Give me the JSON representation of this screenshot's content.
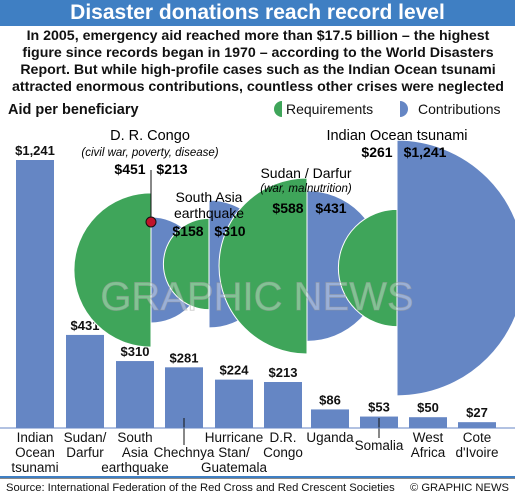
{
  "header": {
    "title": "Disaster donations reach record level",
    "intro": "In 2005, emergency aid reached more than $17.5 billion – the highest figure since records began in 1970 – according to the World Disasters Report. But while high-profile cases such as the Indian Ocean tsunami attracted enormous contributions, countless other crises were neglected",
    "subhead": "Aid per beneficiary"
  },
  "legend": {
    "requirements_label": "Requirements",
    "contributions_label": "Contributions"
  },
  "colors": {
    "requirements": "#3fa55a",
    "contributions": "#6586c4",
    "bar": "#6586c4",
    "banner": "#3f7fc3"
  },
  "watermark": "GRAPHIC NEWS",
  "footer": {
    "source": "Source: International Federation of the Red Cross and Red Crescent Societies",
    "credit": "© GRAPHIC NEWS"
  },
  "chart_data": [
    {
      "type": "bar",
      "title": "Aid per beneficiary",
      "categories": [
        "Indian Ocean tsunami",
        "Sudan/ Darfur",
        "South Asia earthquake",
        "Chechnya",
        "Hurricane Stan/ Guatemala",
        "D.R. Congo",
        "Uganda",
        "Somalia",
        "West Africa",
        "Cote d'Ivoire"
      ],
      "category_lines": [
        [
          "Indian",
          "Ocean",
          "tsunami"
        ],
        [
          "Sudan/",
          "Darfur"
        ],
        [
          "South",
          "Asia",
          "earthquake"
        ],
        [
          "Chechnya"
        ],
        [
          "Hurricane",
          "Stan/",
          "Guatemala"
        ],
        [
          "D.R.",
          "Congo"
        ],
        [
          "Uganda"
        ],
        [
          "Somalia"
        ],
        [
          "West",
          "Africa"
        ],
        [
          "Cote",
          "d'Ivoire"
        ]
      ],
      "values": [
        1241,
        431,
        310,
        281,
        224,
        213,
        86,
        53,
        50,
        27
      ],
      "value_labels": [
        "$1,241",
        "$431",
        "$310",
        "$281",
        "$224",
        "$213",
        "$86",
        "$53",
        "$50",
        "$27"
      ],
      "ylim": [
        0,
        1241
      ]
    },
    {
      "type": "pie",
      "description": "Half-circle pairs: requirements (left half) vs contributions (right half), area proportional to value",
      "series_names": [
        "Requirements",
        "Contributions"
      ],
      "items": [
        {
          "name": "D. R. Congo",
          "note": "(civil war, poverty, disease)",
          "requirements": 451,
          "contributions": 213,
          "req_label": "$451",
          "con_label": "$213"
        },
        {
          "name": "South Asia earthquake",
          "name_lines": [
            "South Asia",
            "earthquake"
          ],
          "requirements": 158,
          "contributions": 310,
          "req_label": "$158",
          "con_label": "$310"
        },
        {
          "name": "Sudan / Darfur",
          "note": "(war, malnutrition)",
          "requirements": 588,
          "contributions": 431,
          "req_label": "$588",
          "con_label": "$431"
        },
        {
          "name": "Indian Ocean tsunami",
          "requirements": 261,
          "contributions": 1241,
          "req_label": "$261",
          "con_label": "$1,241"
        }
      ]
    }
  ]
}
